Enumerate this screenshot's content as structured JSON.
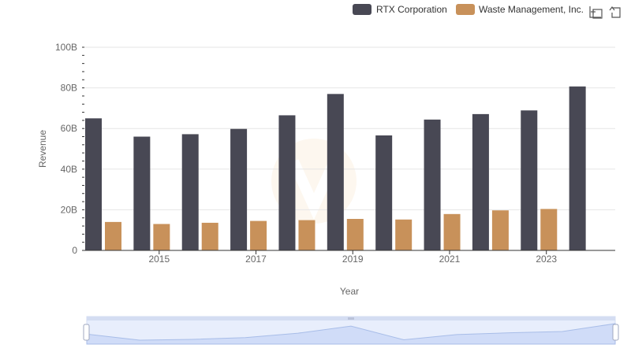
{
  "chart_data": {
    "type": "bar",
    "title": "",
    "xlabel": "Year",
    "ylabel": "Revenue",
    "ylim": [
      0,
      100
    ],
    "y_unit_suffix": "B",
    "y_ticks": [
      0,
      20,
      40,
      60,
      80,
      100
    ],
    "y_tick_labels": [
      "0",
      "20B",
      "40B",
      "60B",
      "80B",
      "100B"
    ],
    "x_tick_labels": [
      "2015",
      "2017",
      "2019",
      "2021",
      "2023"
    ],
    "categories": [
      "2014",
      "2015",
      "2016",
      "2017",
      "2018",
      "2019",
      "2020",
      "2021",
      "2022",
      "2023",
      "2024"
    ],
    "series": [
      {
        "name": "RTX Corporation",
        "color": "#484854",
        "values": [
          65.0,
          56.0,
          57.2,
          59.8,
          66.5,
          77.0,
          56.6,
          64.4,
          67.1,
          68.9,
          80.7
        ]
      },
      {
        "name": "Waste Management, Inc.",
        "color": "#c8915a",
        "values": [
          14.0,
          13.0,
          13.6,
          14.5,
          14.9,
          15.5,
          15.2,
          17.9,
          19.7,
          20.4,
          null
        ]
      }
    ],
    "legend_position": "top-right",
    "grid": true
  },
  "toolbar": {
    "icons": [
      "zoom-icon",
      "reset-icon"
    ]
  }
}
